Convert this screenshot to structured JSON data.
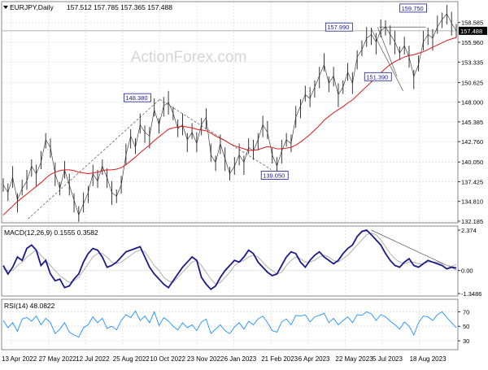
{
  "header": {
    "symbol": "EURJPY,Daily",
    "ohlc": "157.512 157.785 157.365 157.488",
    "watermark": "ActionForex.com"
  },
  "colors": {
    "price": "#222222",
    "ma": "#e01818",
    "macd": "#1a1a8c",
    "signal": "#b0b0b0",
    "rsi": "#1e90ff",
    "label_border": "#1a1a8c",
    "current_bg": "#000000",
    "grid": "#dcdcdc",
    "trend": "#555555"
  },
  "chart_data": [
    {
      "type": "line",
      "panel": "price",
      "title": "EURJPY,Daily",
      "x_ticks": [
        "13 Apr 2022",
        "27 May 2022",
        "12 Jul 2022",
        "25 Aug 2022",
        "10 Oct 2022",
        "23 Nov 2022",
        "6 Jan 2023",
        "21 Feb 2023",
        "6 Apr 2023",
        "22 May 2023",
        "5 Jul 2023",
        "18 Aug 2023"
      ],
      "y_ticks": [
        "158.585",
        "155.960",
        "153.335",
        "150.625",
        "148.000",
        "145.385",
        "142.760",
        "140.050",
        "137.425",
        "134.810",
        "132.185"
      ],
      "ylim": [
        132.185,
        160.5
      ],
      "current_price": "157.488",
      "annotations": [
        {
          "text": "148.380",
          "date": "10 Oct 2022",
          "value": 148.38
        },
        {
          "text": "139.050",
          "date": "21 Feb 2023",
          "value": 139.05
        },
        {
          "text": "157.990",
          "date": "22 Jun 2023",
          "value": 157.99
        },
        {
          "text": "151.390",
          "date": "28 Jul 2023",
          "value": 151.39
        },
        {
          "text": "159.750",
          "date": "18 Aug 2023",
          "value": 159.75
        }
      ],
      "series": [
        {
          "values": [
            137.0,
            136.0,
            138.0,
            135.0,
            136.5,
            137.5,
            139.5,
            138.5,
            140.0,
            143.0,
            142.0,
            138.5,
            136.5,
            139.0,
            137.0,
            135.0,
            133.0,
            134.5,
            136.0,
            138.5,
            137.5,
            139.5,
            138.0,
            136.0,
            135.5,
            137.0,
            141.0,
            143.5,
            142.0,
            145.0,
            144.0,
            143.5,
            147.0,
            145.0,
            147.5,
            148.0,
            146.5,
            144.5,
            145.0,
            143.0,
            144.0,
            142.5,
            145.0,
            146.0,
            141.0,
            140.0,
            142.5,
            140.5,
            138.5,
            139.5,
            141.0,
            140.0,
            142.0,
            141.5,
            143.0,
            145.0,
            144.0,
            141.0,
            139.5,
            141.5,
            143.0,
            142.5,
            146.0,
            147.5,
            149.0,
            148.5,
            150.0,
            151.5,
            153.0,
            150.5,
            151.5,
            149.0,
            150.0,
            152.0,
            150.5,
            154.0,
            155.0,
            156.5,
            157.0,
            156.0,
            157.5,
            157.99,
            157.0,
            156.0,
            154.5,
            155.5,
            154.0,
            151.39,
            153.0,
            156.0,
            157.0,
            156.5,
            158.0,
            159.0,
            159.75,
            158.5,
            157.488
          ]
        },
        {
          "values": [
            133.0,
            133.6,
            134.2,
            134.8,
            135.3,
            135.8,
            136.3,
            136.8,
            137.3,
            137.9,
            138.4,
            138.7,
            138.9,
            139.0,
            139.0,
            138.9,
            138.7,
            138.6,
            138.5,
            138.6,
            138.7,
            138.9,
            139.0,
            139.0,
            139.1,
            139.3,
            139.7,
            140.2,
            140.7,
            141.3,
            141.8,
            142.3,
            142.9,
            143.4,
            143.9,
            144.4,
            144.6,
            144.7,
            144.8,
            144.7,
            144.6,
            144.4,
            144.3,
            144.2,
            143.9,
            143.5,
            143.2,
            142.9,
            142.5,
            142.2,
            142.0,
            141.8,
            141.6,
            141.6,
            141.7,
            141.9,
            142.1,
            142.0,
            141.8,
            141.8,
            141.9,
            142.0,
            142.3,
            142.7,
            143.2,
            143.7,
            144.3,
            144.9,
            145.6,
            146.1,
            146.6,
            147.0,
            147.4,
            147.9,
            148.3,
            148.9,
            149.5,
            150.1,
            150.7,
            151.3,
            151.9,
            152.5,
            153.0,
            153.4,
            153.7,
            154.0,
            154.2,
            154.3,
            154.5,
            154.7,
            155.0,
            155.3,
            155.6,
            155.9,
            156.2,
            156.4,
            156.6
          ]
        }
      ]
    },
    {
      "type": "line",
      "panel": "macd",
      "title": "MACD(12,26,9) 0.1555 0.3582",
      "y_ticks": [
        "2.374",
        "0.00",
        "-1.3486"
      ],
      "ylim": [
        -1.3486,
        2.374
      ],
      "series": [
        {
          "values": [
            0.3,
            -0.2,
            0.2,
            0.8,
            0.6,
            1.3,
            1.5,
            1.2,
            0.3,
            0.6,
            -0.2,
            -0.6,
            -0.5,
            -1.0,
            -0.9,
            -0.5,
            -0.2,
            0.5,
            1.0,
            1.3,
            1.2,
            0.8,
            0.2,
            0.3,
            0.5,
            0.8,
            1.1,
            1.2,
            1.3,
            1.4,
            0.8,
            0.2,
            -0.2,
            -0.5,
            -0.8,
            -1.0,
            -0.6,
            -0.2,
            0.2,
            0.5,
            0.8,
            0.6,
            -0.4,
            -0.8,
            -1.1,
            -0.9,
            -0.4,
            0.0,
            0.3,
            0.6,
            0.5,
            0.8,
            1.2,
            1.0,
            0.5,
            0.2,
            -0.1,
            -0.3,
            -0.2,
            0.3,
            0.8,
            1.1,
            1.0,
            0.5,
            0.2,
            0.6,
            0.9,
            1.1,
            0.8,
            0.6,
            0.4,
            0.6,
            1.0,
            1.3,
            1.5,
            2.0,
            2.3,
            2.374,
            2.1,
            1.8,
            1.5,
            1.0,
            0.6,
            0.3,
            0.2,
            0.5,
            0.7,
            0.3,
            0.2,
            0.4,
            0.6,
            0.5,
            0.4,
            0.3,
            0.1,
            0.2,
            0.1555
          ]
        },
        {
          "values": [
            0.1,
            0.0,
            0.0,
            0.3,
            0.5,
            0.8,
            1.0,
            1.2,
            0.9,
            0.6,
            0.3,
            0.0,
            -0.3,
            -0.5,
            -0.7,
            -0.6,
            -0.4,
            0.0,
            0.4,
            0.8,
            1.0,
            1.0,
            0.8,
            0.5,
            0.4,
            0.5,
            0.7,
            0.9,
            1.1,
            1.2,
            1.1,
            0.7,
            0.3,
            0.0,
            -0.4,
            -0.6,
            -0.7,
            -0.4,
            -0.1,
            0.2,
            0.5,
            0.6,
            0.3,
            -0.1,
            -0.5,
            -0.8,
            -0.7,
            -0.4,
            -0.1,
            0.3,
            0.5,
            0.6,
            0.8,
            0.9,
            0.8,
            0.5,
            0.2,
            0.0,
            -0.2,
            -0.1,
            0.3,
            0.6,
            0.8,
            0.7,
            0.5,
            0.5,
            0.6,
            0.8,
            0.9,
            0.8,
            0.6,
            0.5,
            0.7,
            0.9,
            1.2,
            1.5,
            1.8,
            2.1,
            2.2,
            2.1,
            1.8,
            1.4,
            1.0,
            0.7,
            0.5,
            0.4,
            0.5,
            0.5,
            0.4,
            0.4,
            0.5,
            0.5,
            0.5,
            0.4,
            0.3,
            0.25,
            0.3582
          ]
        }
      ]
    },
    {
      "type": "line",
      "panel": "rsi",
      "title": "RSI(14) 48.0822",
      "y_ticks": [
        "70",
        "50",
        "30"
      ],
      "ylim": [
        20,
        85
      ],
      "series": [
        {
          "values": [
            58,
            48,
            55,
            43,
            60,
            62,
            57,
            64,
            52,
            61,
            55,
            40,
            46,
            55,
            42,
            38,
            35,
            48,
            52,
            63,
            55,
            61,
            47,
            50,
            45,
            58,
            66,
            62,
            71,
            58,
            64,
            55,
            70,
            51,
            62,
            57,
            50,
            45,
            55,
            48,
            52,
            44,
            56,
            60,
            40,
            46,
            52,
            44,
            40,
            49,
            55,
            46,
            57,
            52,
            60,
            64,
            55,
            44,
            42,
            56,
            60,
            52,
            65,
            64,
            66,
            56,
            63,
            65,
            68,
            55,
            61,
            52,
            58,
            63,
            55,
            66,
            65,
            70,
            67,
            58,
            66,
            63,
            57,
            52,
            46,
            56,
            50,
            38,
            55,
            64,
            63,
            58,
            66,
            70,
            62,
            55,
            48.0822
          ]
        }
      ]
    }
  ]
}
